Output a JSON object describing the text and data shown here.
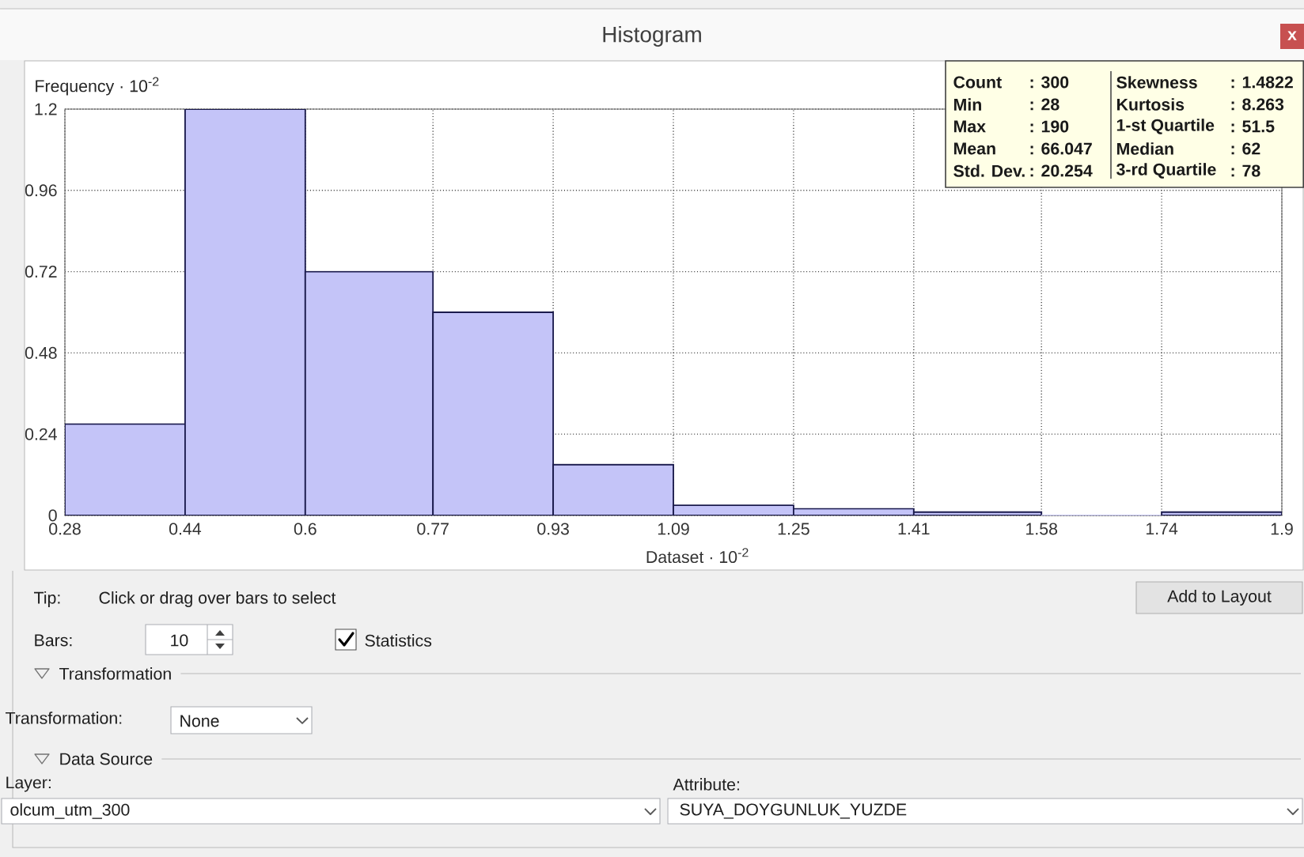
{
  "chart_data": {
    "type": "histogram",
    "title": "Histogram",
    "xlabel": "Dataset · 10$^{-2}$",
    "ylabel": "Frequency · 10$^{-2}$",
    "bins": [
      0.28,
      0.44,
      0.6,
      0.77,
      0.93,
      1.09,
      1.25,
      1.41,
      1.58,
      1.74,
      1.9
    ],
    "values": [
      0.27,
      1.2,
      0.72,
      0.6,
      0.15,
      0.03,
      0.02,
      0.01,
      0,
      0.01
    ],
    "color": "#c4c4f8",
    "xlim": [
      0.28,
      1.9
    ],
    "ylim": [
      0,
      1.2
    ],
    "xticks": [
      0.28,
      0.44,
      0.6,
      0.77,
      0.93,
      1.09,
      1.25,
      1.41,
      1.58,
      1.74,
      1.9
    ],
    "yticks": [
      0,
      0.24,
      0.48,
      0.72,
      0.96,
      1.2
    ],
    "grid": true,
    "annotations": [
      "Count",
      ": 300",
      "Min",
      ": 28",
      "Max",
      ": 190",
      "Mean",
      ": 66.047",
      "Std. Dev.",
      ": 20.254",
      "Skewness",
      ": 1.4822",
      "Kurtosis",
      ": 8.263",
      "1-st Quartile",
      ": 51.5",
      "Median",
      ": 62",
      "3-rd Quartile",
      ": 78",
      "Tip:",
      "Click or drag over bars to select",
      "Add to Layout",
      "Bars:",
      "10",
      "Statistics",
      "Transformation",
      "Transformation:",
      "None",
      "Data Source",
      "Layer:",
      "olcum_utm_300",
      "Attribute:",
      "SUYA_DOYGUNLUK_YUZDE",
      "x"
    ]
  }
}
